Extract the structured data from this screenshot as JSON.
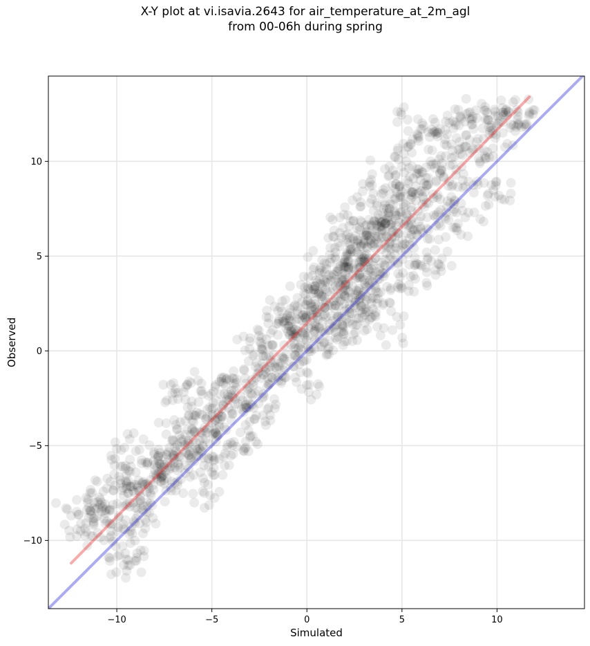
{
  "chart_data": {
    "type": "scatter",
    "title": "X-Y plot at vi.isavia.2643 for air_temperature_at_2m_agl",
    "subtitle": "from 00-06h during spring",
    "xlabel": "Simulated",
    "ylabel": "Observed",
    "xlim": [
      -13.6,
      14.6
    ],
    "ylim": [
      -13.6,
      14.5
    ],
    "xticks": [
      -10,
      -5,
      0,
      5,
      10
    ],
    "yticks": [
      -10,
      -5,
      0,
      5,
      10
    ],
    "xtick_labels": [
      "−10",
      "−5",
      "0",
      "5",
      "10"
    ],
    "ytick_labels": [
      "−10",
      "−5",
      "0",
      "5",
      "10"
    ],
    "grid": true,
    "point_color": "#000000",
    "point_alpha": 0.08,
    "regression_line": {
      "color": "#ee2222",
      "x": [
        -12.4,
        11.7
      ],
      "y": [
        -11.2,
        13.4
      ]
    },
    "identity_line": {
      "color": "#2222dd",
      "x": [
        -13.6,
        14.6
      ],
      "y": [
        -13.6,
        14.6
      ]
    },
    "points": [
      [
        -12.4,
        -8.7
      ],
      [
        -11.9,
        -9.5
      ],
      [
        -11.4,
        -7.5
      ],
      [
        -11.2,
        -8.3
      ],
      [
        -11.0,
        -9.6
      ],
      [
        -10.8,
        -8.0
      ],
      [
        -10.6,
        -9.1
      ],
      [
        -10.3,
        -8.4
      ],
      [
        -10.1,
        -7.1
      ],
      [
        -9.9,
        -8.8
      ],
      [
        -9.8,
        -6.1
      ],
      [
        -9.7,
        -10.3
      ],
      [
        -9.6,
        -5.1
      ],
      [
        -9.5,
        -11.0
      ],
      [
        -9.4,
        -7.5
      ],
      [
        -9.3,
        -11.3
      ],
      [
        -9.1,
        -9.0
      ],
      [
        -9.0,
        -6.4
      ],
      [
        -8.8,
        -7.4
      ],
      [
        -8.6,
        -8.4
      ],
      [
        -8.4,
        -6.0
      ],
      [
        -8.2,
        -7.6
      ],
      [
        -8.0,
        -6.3
      ],
      [
        -7.8,
        -5.2
      ],
      [
        -7.6,
        -6.6
      ],
      [
        -7.4,
        -4.4
      ],
      [
        -7.2,
        -6.1
      ],
      [
        -7.0,
        -5.5
      ],
      [
        -6.9,
        -2.0
      ],
      [
        -6.8,
        -6.9
      ],
      [
        -6.6,
        -4.8
      ],
      [
        -6.4,
        -3.7
      ],
      [
        -6.3,
        -1.8
      ],
      [
        -6.1,
        -5.7
      ],
      [
        -5.9,
        -4.3
      ],
      [
        -5.7,
        -2.7
      ],
      [
        -5.6,
        -6.4
      ],
      [
        -5.4,
        -7.5
      ],
      [
        -5.3,
        -3.6
      ],
      [
        -5.1,
        -4.9
      ],
      [
        -5.0,
        -6.4
      ],
      [
        -4.8,
        -1.8
      ],
      [
        -4.6,
        -4.0
      ],
      [
        -4.4,
        -2.9
      ],
      [
        -4.2,
        -5.1
      ],
      [
        -4.0,
        -2.3
      ],
      [
        -3.9,
        -3.3
      ],
      [
        -3.7,
        -1.5
      ],
      [
        -3.5,
        -4.3
      ],
      [
        -3.3,
        -5.3
      ],
      [
        -3.1,
        -2.0
      ],
      [
        -3.0,
        0.5
      ],
      [
        -2.8,
        -3.0
      ],
      [
        -2.6,
        -1.2
      ],
      [
        -2.4,
        0.1
      ],
      [
        -2.3,
        -3.4
      ],
      [
        -2.1,
        -1.9
      ],
      [
        -1.9,
        -0.5
      ],
      [
        -1.8,
        1.1
      ],
      [
        -1.6,
        -0.9
      ],
      [
        -1.4,
        2.3
      ],
      [
        -1.2,
        0.3
      ],
      [
        -1.1,
        -1.4
      ],
      [
        -0.9,
        1.6
      ],
      [
        -0.7,
        0.9
      ],
      [
        -0.5,
        2.8
      ],
      [
        -0.4,
        -0.7
      ],
      [
        -0.2,
        1.9
      ],
      [
        0.0,
        -1.8
      ],
      [
        0.1,
        1.2
      ],
      [
        0.3,
        3.4
      ],
      [
        0.5,
        2.0
      ],
      [
        0.7,
        0.2
      ],
      [
        0.8,
        4.8
      ],
      [
        1.0,
        2.6
      ],
      [
        1.2,
        1.1
      ],
      [
        1.3,
        3.9
      ],
      [
        1.5,
        5.2
      ],
      [
        1.6,
        0.6
      ],
      [
        1.8,
        3.0
      ],
      [
        1.9,
        6.5
      ],
      [
        2.1,
        2.2
      ],
      [
        2.2,
        4.4
      ],
      [
        2.4,
        1.4
      ],
      [
        2.5,
        5.8
      ],
      [
        2.7,
        3.1
      ],
      [
        2.8,
        7.6
      ],
      [
        2.9,
        2.0
      ],
      [
        3.0,
        4.9
      ],
      [
        3.2,
        6.1
      ],
      [
        3.3,
        3.5
      ],
      [
        3.5,
        8.3
      ],
      [
        3.6,
        5.4
      ],
      [
        3.7,
        2.5
      ],
      [
        3.9,
        6.8
      ],
      [
        4.0,
        4.1
      ],
      [
        4.1,
        9.6
      ],
      [
        4.3,
        7.3
      ],
      [
        4.4,
        5.0
      ],
      [
        4.5,
        1.1
      ],
      [
        4.7,
        8.8
      ],
      [
        4.8,
        6.2
      ],
      [
        4.9,
        3.9
      ],
      [
        5.1,
        10.4
      ],
      [
        5.2,
        7.7
      ],
      [
        5.3,
        12.2
      ],
      [
        5.4,
        5.6
      ],
      [
        5.6,
        9.1
      ],
      [
        5.7,
        3.8
      ],
      [
        5.9,
        11.3
      ],
      [
        6.0,
        7.1
      ],
      [
        6.2,
        8.4
      ],
      [
        6.3,
        5.2
      ],
      [
        6.5,
        10.0
      ],
      [
        6.6,
        11.5
      ],
      [
        6.8,
        6.6
      ],
      [
        6.9,
        4.6
      ],
      [
        7.1,
        9.5
      ],
      [
        7.3,
        12.1
      ],
      [
        7.4,
        7.9
      ],
      [
        7.6,
        10.9
      ],
      [
        7.8,
        6.5
      ],
      [
        8.0,
        11.9
      ],
      [
        8.2,
        9.0
      ],
      [
        8.4,
        12.5
      ],
      [
        8.5,
        7.3
      ],
      [
        8.7,
        10.6
      ],
      [
        8.9,
        12.7
      ],
      [
        9.1,
        9.9
      ],
      [
        9.3,
        11.2
      ],
      [
        9.5,
        8.2
      ],
      [
        9.7,
        11.9
      ],
      [
        9.9,
        12.4
      ],
      [
        10.1,
        8.2
      ],
      [
        10.3,
        11.5
      ],
      [
        10.6,
        12.6
      ],
      [
        11.1,
        12.4
      ],
      [
        11.7,
        12.6
      ],
      [
        -1.0,
        1.0
      ],
      [
        0.2,
        2.5
      ],
      [
        0.6,
        3.0
      ],
      [
        1.1,
        3.6
      ],
      [
        1.4,
        4.0
      ],
      [
        1.7,
        4.3
      ],
      [
        2.0,
        4.8
      ],
      [
        2.3,
        5.2
      ],
      [
        2.6,
        5.5
      ],
      [
        3.1,
        6.1
      ],
      [
        3.4,
        6.6
      ],
      [
        3.8,
        7.0
      ],
      [
        4.2,
        7.5
      ],
      [
        4.6,
        8.0
      ],
      [
        5.0,
        8.4
      ],
      [
        2.0,
        2.9
      ],
      [
        2.4,
        3.4
      ],
      [
        2.8,
        3.9
      ],
      [
        3.2,
        4.4
      ],
      [
        3.6,
        4.9
      ],
      [
        1.0,
        1.8
      ],
      [
        1.5,
        2.4
      ],
      [
        0.4,
        1.0
      ],
      [
        -0.3,
        0.4
      ],
      [
        -2.0,
        -1.0
      ],
      [
        -3.5,
        -2.4
      ],
      [
        -5.0,
        -3.8
      ],
      [
        -6.2,
        -4.9
      ],
      [
        -7.5,
        -6.0
      ],
      [
        -8.9,
        -7.2
      ],
      [
        4.0,
        6.0
      ],
      [
        5.5,
        7.4
      ],
      [
        6.4,
        8.8
      ],
      [
        7.0,
        9.4
      ],
      [
        3.0,
        2.2
      ],
      [
        2.6,
        1.7
      ],
      [
        1.9,
        1.3
      ],
      [
        4.4,
        3.2
      ],
      [
        5.8,
        6.1
      ]
    ]
  }
}
